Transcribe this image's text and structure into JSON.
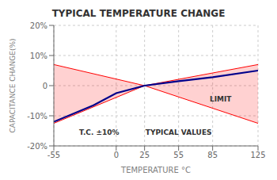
{
  "chart_data": {
    "type": "line",
    "title": "TYPICAL TEMPERATURE CHANGE",
    "x_label": "TEMPERATURE °C",
    "y_label": "CAPACITANCE CHANGE(%)",
    "xlim": [
      -55,
      125
    ],
    "ylim": [
      -20,
      20
    ],
    "xticks": [
      -55,
      0,
      25,
      55,
      85,
      125
    ],
    "yticks": [
      {
        "value": -20,
        "label": "-20%"
      },
      {
        "value": -10,
        "label": "-10%"
      },
      0,
      {
        "value": 10,
        "label": "10%"
      },
      {
        "value": 20,
        "label": "20%"
      }
    ],
    "grid": true,
    "series": [
      {
        "type": "band",
        "color": "#ff0000",
        "x": [
          -55,
          25,
          125
        ],
        "upper": [
          7.0,
          0.0,
          7.0
        ],
        "lower": [
          -12.5,
          0.0,
          -12.5
        ]
      },
      {
        "type": "line",
        "color": "#00008B",
        "x": [
          -55,
          -20,
          0,
          25,
          55,
          85,
          125
        ],
        "values": [
          -12.0,
          -6.5,
          -2.5,
          0.0,
          1.5,
          2.8,
          5.0
        ]
      }
    ],
    "annotations": [
      {
        "text": "T.C. ±10%",
        "x": -15,
        "y": -15.5
      },
      {
        "text": "TYPICAL VALUES",
        "x": 55,
        "y": -15.5
      },
      {
        "text": "LIMIT",
        "x": 92,
        "y": -4.5
      }
    ]
  }
}
